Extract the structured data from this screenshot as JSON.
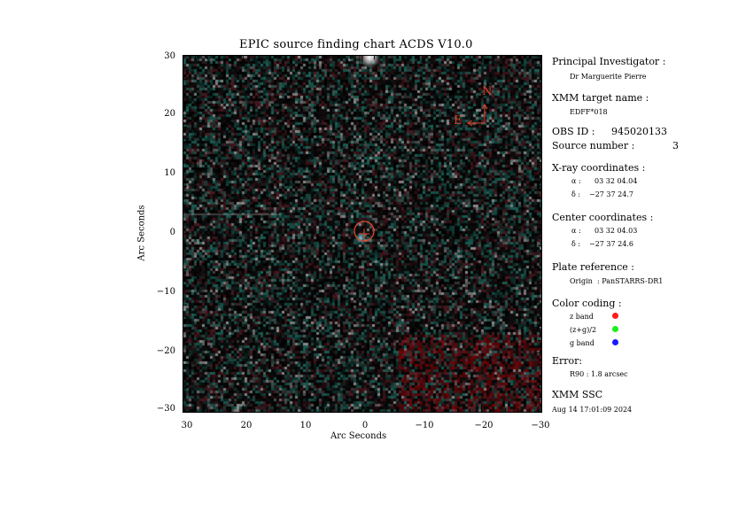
{
  "title": "EPIC source finding chart ACDS V10.0",
  "axes": {
    "x_title": "Arc Seconds",
    "y_title": "Arc Seconds",
    "x_ticks": [
      "30",
      "20",
      "10",
      "0",
      "−10",
      "−20",
      "−30"
    ],
    "y_ticks": [
      "30",
      "20",
      "10",
      "0",
      "−10",
      "−20",
      "−30"
    ]
  },
  "image_overlay": {
    "compass_north": "N",
    "compass_east": "E",
    "marker_color": "#e8432a"
  },
  "info": {
    "pi_heading": "Principal Investigator :",
    "pi_name": "Dr Marguerite Pierre",
    "target_heading": "XMM target name :",
    "target_name": "EDFF*018",
    "obs_label": "OBS ID :",
    "obs_id": "945020133",
    "source_label": "Source number :",
    "source_number": "3",
    "xray_heading": "X-ray coordinates :",
    "xray_alpha_label": "α :",
    "xray_alpha": "03 32 04.04",
    "xray_delta_label": "δ :",
    "xray_delta": "−27 37 24.7",
    "center_heading": "Center coordinates :",
    "center_alpha_label": "α :",
    "center_alpha": "03 32 04.03",
    "center_delta_label": "δ :",
    "center_delta": "−27 37 24.6",
    "plate_heading": "Plate reference :",
    "origin_label": "Origin",
    "origin_value": ": PanSTARRS-DR1",
    "color_heading": "Color coding :",
    "color_items": [
      {
        "label": "z band",
        "color": "#ff1a1a"
      },
      {
        "label": "(z+g)/2",
        "color": "#1aee1a"
      },
      {
        "label": "g band",
        "color": "#1a1aff"
      }
    ],
    "error_heading": "Error:",
    "error_value": "R90 :  1.8 arcsec",
    "footer_heading": "XMM SSC",
    "footer_date": "Aug 14 17:01:09 2024"
  }
}
